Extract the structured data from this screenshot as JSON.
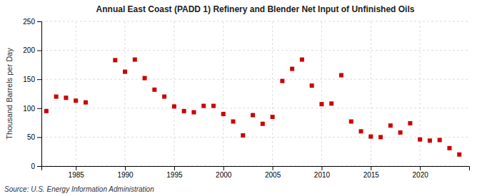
{
  "chart_data": {
    "type": "scatter",
    "title": "Annual East Coast (PADD 1) Refinery and Blender Net Input of Unfinished Oils",
    "ylabel": "Thousand Barrels per Day",
    "annotations": [
      "Source: U.S. Energy Information Administration"
    ],
    "x": [
      1982,
      1983,
      1984,
      1985,
      1986,
      1989,
      1990,
      1991,
      1992,
      1993,
      1994,
      1995,
      1996,
      1997,
      1998,
      1999,
      2000,
      2001,
      2002,
      2003,
      2004,
      2005,
      2006,
      2007,
      2008,
      2009,
      2010,
      2011,
      2012,
      2013,
      2014,
      2015,
      2016,
      2017,
      2018,
      2019,
      2020,
      2021,
      2022,
      2023,
      2024
    ],
    "values": [
      95,
      120,
      118,
      113,
      110,
      183,
      163,
      184,
      152,
      132,
      120,
      103,
      95,
      93,
      104,
      104,
      90,
      77,
      53,
      88,
      73,
      85,
      147,
      168,
      184,
      139,
      107,
      108,
      157,
      77,
      60,
      51,
      50,
      70,
      58,
      74,
      46,
      44,
      45,
      31,
      20
    ],
    "color": "#cc0000",
    "marker": "square",
    "xlim": [
      1981.5,
      2025
    ],
    "ylim": [
      0,
      250
    ],
    "xticks": [
      1985,
      1990,
      1995,
      2000,
      2005,
      2010,
      2015,
      2020
    ],
    "yticks": [
      0,
      50,
      100,
      150,
      200,
      250
    ],
    "grid": true
  }
}
